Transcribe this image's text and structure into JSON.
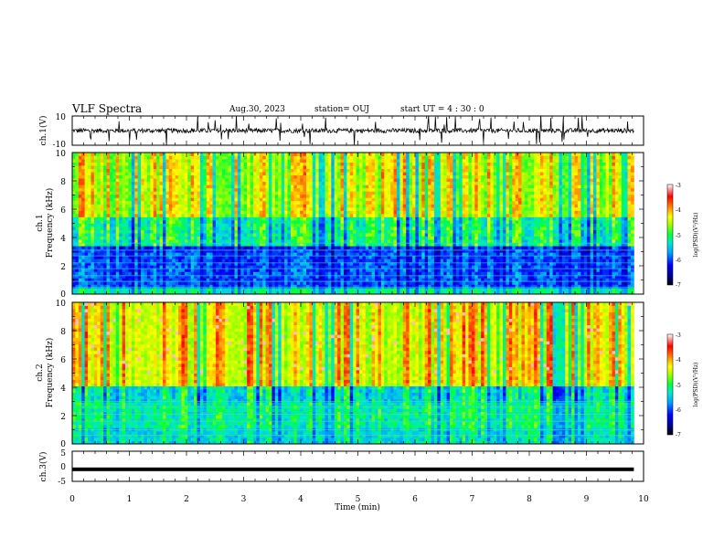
{
  "header": {
    "title": "VLF Spectra",
    "date": "Aug.30, 2023",
    "station": "station= OUJ",
    "start": "start  UT =   4 : 30 : 0"
  },
  "chart_data": [
    {
      "type": "line",
      "name": "ch1_waveform",
      "ylabel": "ch.1(V)",
      "ylim": [
        -10,
        10
      ],
      "yticks": [
        "10",
        "-10"
      ],
      "xlim": [
        0,
        10
      ],
      "baseline": 0,
      "description_level": "noisy waveform near 0 V with spikes"
    },
    {
      "type": "heatmap",
      "name": "ch1_spectrogram",
      "ylabel": "ch.1\nFrequency (kHz)",
      "ylabel_line1": "ch.1",
      "ylabel_line2": "Frequency (kHz)",
      "ylim": [
        0,
        10
      ],
      "yticks": [
        "0",
        "2",
        "4",
        "6",
        "8",
        "10"
      ],
      "xlim": [
        0,
        10
      ],
      "colorbar": {
        "label": "log(PSD)(V²/Hz)",
        "range": [
          -7,
          -3
        ],
        "ticks": [
          "-3",
          "-4",
          "-5",
          "-6",
          "-7"
        ]
      }
    },
    {
      "type": "heatmap",
      "name": "ch2_spectrogram",
      "ylabel": "ch.2\nFrequency (kHz)",
      "ylabel_line1": "ch.2",
      "ylabel_line2": "Frequency (kHz)",
      "ylim": [
        0,
        10
      ],
      "yticks": [
        "0",
        "2",
        "4",
        "6",
        "8",
        "10"
      ],
      "xlim": [
        0,
        10
      ],
      "colorbar": {
        "label": "log(PSD)(V²/Hz)",
        "range": [
          -7,
          -3
        ],
        "ticks": [
          "-3",
          "-4",
          "-5",
          "-6",
          "-7"
        ]
      }
    },
    {
      "type": "line",
      "name": "ch3_waveform",
      "ylabel": "ch.3(V)",
      "ylim": [
        -5,
        5
      ],
      "yticks": [
        "5",
        "0",
        "-5"
      ],
      "xlim": [
        0,
        10
      ],
      "level": -1
    }
  ],
  "xaxis": {
    "label": "Time  (min)",
    "ticks": [
      "0",
      "1",
      "2",
      "3",
      "4",
      "5",
      "6",
      "7",
      "8",
      "9",
      "10"
    ],
    "data_end_min": 9.83
  },
  "colors": {
    "scale": [
      "#000066",
      "#0000ff",
      "#00a0ff",
      "#00e0e0",
      "#00ff40",
      "#a0ff00",
      "#ffff00",
      "#ff8000",
      "#ff0000",
      "#ffffff"
    ]
  }
}
